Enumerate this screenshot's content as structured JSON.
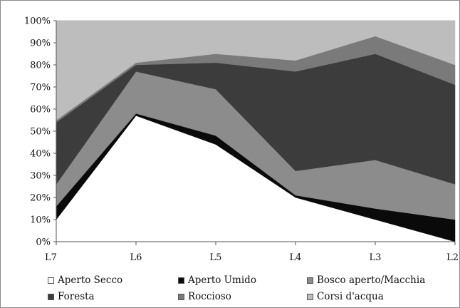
{
  "chart_data": {
    "type": "area",
    "stacked": true,
    "categories": [
      "L7",
      "L6",
      "L5",
      "L4",
      "L3",
      "L2"
    ],
    "ylim": [
      0,
      100
    ],
    "y_ticks": [
      "0%",
      "10%",
      "20%",
      "30%",
      "40%",
      "50%",
      "60%",
      "70%",
      "80%",
      "90%",
      "100%"
    ],
    "grid": "horizontal",
    "legend_position": "bottom",
    "series": [
      {
        "name": "Aperto Secco",
        "color": "#ffffff",
        "values": [
          10,
          57,
          44,
          20,
          10,
          0
        ]
      },
      {
        "name": "Aperto Umido",
        "color": "#0a0a0a",
        "values": [
          6,
          1,
          4,
          1,
          5,
          10
        ]
      },
      {
        "name": "Bosco aperto/Macchia",
        "color": "#8c8c8c",
        "values": [
          10,
          19,
          21,
          11,
          22,
          16
        ]
      },
      {
        "name": "Foresta",
        "color": "#3c3c3c",
        "values": [
          28,
          3,
          12,
          45,
          48,
          45
        ]
      },
      {
        "name": "Roccioso",
        "color": "#7a7a7a",
        "values": [
          1,
          1,
          4,
          5,
          8,
          9
        ]
      },
      {
        "name": "Corsi d'acqua",
        "color": "#bdbdbd",
        "values": [
          45,
          19,
          15,
          18,
          7,
          20
        ]
      }
    ]
  }
}
